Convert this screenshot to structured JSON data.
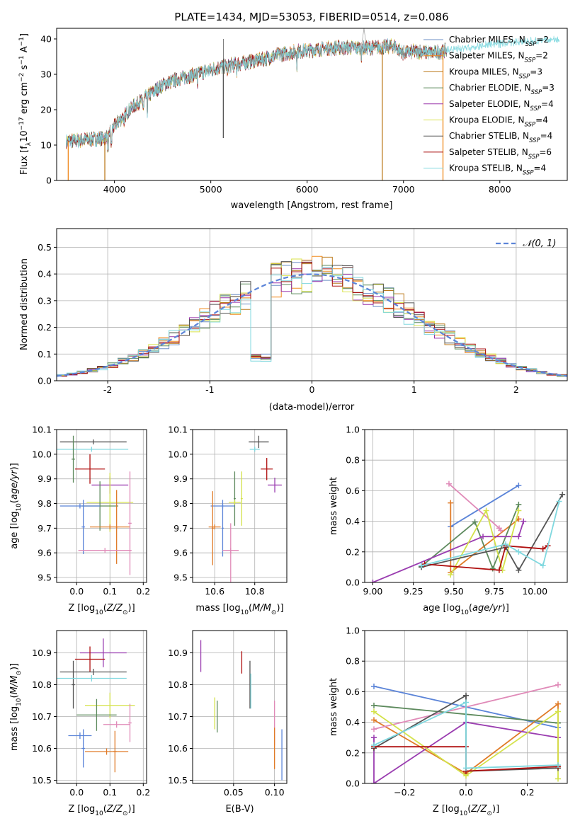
{
  "figure_title": "PLATE=1434, MJD=53053, FIBERID=0514, z=0.086",
  "colors": {
    "series": [
      "#6e8fc6",
      "#f08a1e",
      "#bc7b1e",
      "#5b8a5b",
      "#9933aa",
      "#d9e24a",
      "#555555",
      "#aa1111",
      "#80d8df"
    ],
    "pink": "#e08ab8",
    "blue": "#5b84d8",
    "orange": "#e07b28",
    "green": "#5d8a5d",
    "purple": "#9a3db0",
    "yellow": "#d4e24a",
    "dark": "#555555",
    "red": "#b01010",
    "cyan": "#80d8df",
    "grid": "#b0b0b0"
  },
  "chart_data": [
    {
      "id": "spectrum",
      "type": "line",
      "xlabel": "wavelength [Angstrom, rest frame]",
      "ylabel": "Flux [f_λ10^-17 erg cm^-2 s^-1 A^-1]",
      "xlim": [
        3400,
        8700
      ],
      "ylim": [
        0,
        43
      ],
      "xticks": [
        4000,
        5000,
        6000,
        7000,
        8000
      ],
      "yticks": [
        0,
        10,
        20,
        30,
        40
      ],
      "grid": false,
      "legend_position": "top-right",
      "continuum_x": [
        3500,
        3700,
        3900,
        4050,
        4200,
        4350,
        4500,
        4700,
        4900,
        5100,
        5300,
        5500,
        5700,
        5900,
        6100,
        6300,
        6500,
        6700,
        6900,
        7000,
        7150,
        7300,
        7500,
        7800,
        8100,
        8400,
        8700
      ],
      "continuum_y": [
        11,
        11.5,
        12,
        17,
        21,
        24,
        27,
        29,
        30.5,
        32,
        33,
        34,
        35.5,
        36.5,
        37,
        37.5,
        37.5,
        37.5,
        38,
        36,
        36.5,
        36,
        37,
        38,
        39,
        39.5,
        40
      ],
      "data_end": 7450,
      "series": [
        {
          "name": "Chabrier MILES, N_SSP=2",
          "label_main": "Chabrier MILES, N",
          "label_sub": "SSP",
          "label_tail": "=2"
        },
        {
          "name": "Salpeter MILES, N_SSP=2",
          "label_main": "Salpeter MILES, N",
          "label_sub": "SSP",
          "label_tail": "=2"
        },
        {
          "name": "Kroupa MILES, N_SSP=3",
          "label_main": "Kroupa MILES, N",
          "label_sub": "SSP",
          "label_tail": "=3"
        },
        {
          "name": "Chabrier ELODIE, N_SSP=3",
          "label_main": "Chabrier ELODIE, N",
          "label_sub": "SSP",
          "label_tail": "=3"
        },
        {
          "name": "Salpeter ELODIE, N_SSP=4",
          "label_main": "Salpeter ELODIE, N",
          "label_sub": "SSP",
          "label_tail": "=4"
        },
        {
          "name": "Kroupa ELODIE, N_SSP=4",
          "label_main": "Kroupa ELODIE, N",
          "label_sub": "SSP",
          "label_tail": "=4"
        },
        {
          "name": "Chabrier STELIB, N_SSP=4",
          "label_main": "Chabrier STELIB, N",
          "label_sub": "SSP",
          "label_tail": "=4"
        },
        {
          "name": "Salpeter STELIB, N_SSP=6",
          "label_main": "Salpeter STELIB, N",
          "label_sub": "SSP",
          "label_tail": "=6"
        },
        {
          "name": "Kroupa STELIB, N_SSP=4",
          "label_main": "Kroupa STELIB, N",
          "label_sub": "SSP",
          "label_tail": "=4"
        }
      ],
      "drops": [
        {
          "x": 3520,
          "color_index": 1
        },
        {
          "x": 3900,
          "color_index": 2
        },
        {
          "x": 6780,
          "color_index": 2
        },
        {
          "x": 7410,
          "color_index": 1
        },
        {
          "x": 5130,
          "color_index": 6
        }
      ]
    },
    {
      "id": "residual_hist",
      "type": "histogram",
      "xlabel": "(data-model)/error",
      "ylabel": "Normed distribution",
      "xlim": [
        -2.5,
        2.5
      ],
      "ylim": [
        0,
        0.57
      ],
      "xticks": [
        -2,
        -1,
        0,
        1,
        2
      ],
      "yticks": [
        0.0,
        0.1,
        0.2,
        0.3,
        0.4,
        0.5
      ],
      "grid": true,
      "legend_position": "top-right",
      "legend_label": "𝒩(0, 1)",
      "bin_width": 0.1,
      "curve_name": "N(0,1)"
    },
    {
      "id": "age_vs_Z",
      "type": "errorbar",
      "xlabel": "Z [log10(Z/Z⊙)]",
      "ylabel": "age [log10(age/yr)]",
      "xlim": [
        -0.06,
        0.21
      ],
      "ylim": [
        9.48,
        10.1
      ],
      "xticks": [
        0.0,
        0.1,
        0.2
      ],
      "yticks": [
        9.5,
        9.6,
        9.7,
        9.8,
        9.9,
        10.0,
        10.1
      ],
      "grid": true,
      "points": [
        {
          "x": 0.04,
          "y": 9.94,
          "xerr": 0.045,
          "yerr": 0.06,
          "c": "red"
        },
        {
          "x": 0.1,
          "y": 9.875,
          "xerr": 0.055,
          "yerr": 0.035,
          "c": "purple"
        },
        {
          "x": 0.05,
          "y": 10.05,
          "xerr": 0.1,
          "yerr": 0.01,
          "c": "dark"
        },
        {
          "x": 0.045,
          "y": 10.02,
          "xerr": 0.11,
          "yerr": 0.01,
          "c": "cyan"
        },
        {
          "x": -0.01,
          "y": 9.98,
          "xerr": 0.005,
          "yerr": 0.095,
          "c": "green"
        },
        {
          "x": 0.1,
          "y": 9.805,
          "xerr": 0.07,
          "yerr": 0.12,
          "c": "yellow"
        },
        {
          "x": 0.07,
          "y": 9.79,
          "xerr": 0.055,
          "yerr": 0.1,
          "c": "green"
        },
        {
          "x": 0.01,
          "y": 9.79,
          "xerr": 0.06,
          "yerr": 0.01,
          "c": "blue"
        },
        {
          "x": 0.02,
          "y": 9.705,
          "xerr": 0.005,
          "yerr": 0.11,
          "c": "blue"
        },
        {
          "x": 0.1,
          "y": 9.705,
          "xerr": 0.06,
          "yerr": 0.01,
          "c": "orange"
        },
        {
          "x": 0.12,
          "y": 9.705,
          "xerr": 0.005,
          "yerr": 0.15,
          "c": "orange"
        },
        {
          "x": 0.085,
          "y": 9.61,
          "xerr": 0.08,
          "yerr": 0.01,
          "c": "pink"
        },
        {
          "x": 0.16,
          "y": 9.72,
          "xerr": 0.005,
          "yerr": 0.21,
          "c": "pink"
        }
      ]
    },
    {
      "id": "age_vs_mass",
      "type": "errorbar",
      "xlabel": "mass [log10(M/M⊙)]",
      "ylabel": "",
      "xlim": [
        10.49,
        10.96
      ],
      "ylim": [
        9.48,
        10.1
      ],
      "xticks": [
        10.6,
        10.8
      ],
      "yticks": [
        9.5,
        9.6,
        9.7,
        9.8,
        9.9,
        10.0,
        10.1
      ],
      "grid": true,
      "points": [
        {
          "x": 10.82,
          "y": 10.05,
          "xerr": 0.05,
          "yerr": 0.025,
          "c": "dark"
        },
        {
          "x": 10.8,
          "y": 10.02,
          "xerr": 0.025,
          "yerr": 0.01,
          "c": "cyan"
        },
        {
          "x": 10.86,
          "y": 9.94,
          "xerr": 0.03,
          "yerr": 0.045,
          "c": "red"
        },
        {
          "x": 10.9,
          "y": 9.875,
          "xerr": 0.035,
          "yerr": 0.03,
          "c": "purple"
        },
        {
          "x": 10.735,
          "y": 9.82,
          "xerr": 0.005,
          "yerr": 0.11,
          "c": "yellow"
        },
        {
          "x": 10.7,
          "y": 9.82,
          "xerr": 0.005,
          "yerr": 0.11,
          "c": "green"
        },
        {
          "x": 10.7,
          "y": 9.805,
          "xerr": 0.03,
          "yerr": 0.01,
          "c": "yellow"
        },
        {
          "x": 10.64,
          "y": 9.79,
          "xerr": 0.06,
          "yerr": 0.01,
          "c": "blue"
        },
        {
          "x": 10.64,
          "y": 9.7,
          "xerr": 0.005,
          "yerr": 0.115,
          "c": "blue"
        },
        {
          "x": 10.6,
          "y": 9.705,
          "xerr": 0.03,
          "yerr": 0.01,
          "c": "orange"
        },
        {
          "x": 10.59,
          "y": 9.7,
          "xerr": 0.005,
          "yerr": 0.15,
          "c": "orange"
        },
        {
          "x": 10.68,
          "y": 9.61,
          "xerr": 0.04,
          "yerr": 0.01,
          "c": "pink"
        },
        {
          "x": 10.68,
          "y": 9.6,
          "xerr": 0.005,
          "yerr": 0.12,
          "c": "pink"
        }
      ]
    },
    {
      "id": "weight_vs_age",
      "type": "line",
      "xlabel": "age [log10(age/yr)]",
      "ylabel": "mass weight",
      "xlim": [
        8.95,
        10.2
      ],
      "ylim": [
        0,
        1
      ],
      "xticks": [
        9.0,
        9.25,
        9.5,
        9.75,
        10.0
      ],
      "xtick_labels": [
        "9.00",
        "9.25",
        "9.50",
        "9.75",
        "10.00"
      ],
      "yticks": [
        0.0,
        0.2,
        0.4,
        0.6,
        0.8,
        1.0
      ],
      "grid": true,
      "series": [
        {
          "c": "blue",
          "x": [
            9.48,
            9.9
          ],
          "y": [
            0.365,
            0.635
          ]
        },
        {
          "c": "orange",
          "x": [
            9.48,
            9.48,
            9.9,
            9.9
          ],
          "y": [
            0.52,
            0.065,
            0.415,
            0.415
          ]
        },
        {
          "c": "pink",
          "x": [
            9.47,
            9.78,
            9.79
          ],
          "y": [
            0.645,
            0.355,
            0.34
          ]
        },
        {
          "c": "green",
          "x": [
            9.3,
            9.63,
            9.74,
            9.9
          ],
          "y": [
            0.105,
            0.395,
            0.09,
            0.51
          ]
        },
        {
          "c": "purple",
          "x": [
            9.0,
            9.68,
            9.9,
            9.93
          ],
          "y": [
            0.0,
            0.3,
            0.3,
            0.4
          ]
        },
        {
          "c": "yellow",
          "x": [
            9.48,
            9.7,
            9.8,
            9.9
          ],
          "y": [
            0.05,
            0.47,
            0.08,
            0.47
          ]
        },
        {
          "c": "dark",
          "x": [
            9.3,
            9.82,
            9.9,
            10.17
          ],
          "y": [
            0.1,
            0.23,
            0.08,
            0.575
          ]
        },
        {
          "c": "red",
          "x": [
            9.32,
            9.78,
            9.82,
            10.05,
            10.08
          ],
          "y": [
            0.12,
            0.08,
            0.24,
            0.22,
            0.24
          ]
        },
        {
          "c": "cyan",
          "x": [
            9.3,
            9.82,
            9.9,
            10.05,
            10.15
          ],
          "y": [
            0.11,
            0.25,
            0.2,
            0.11,
            0.53
          ]
        }
      ]
    },
    {
      "id": "mass_vs_Z",
      "type": "errorbar",
      "xlabel": "Z [log10(Z/Z⊙)]",
      "ylabel": "mass [log10(M/M⊙)]",
      "xlim": [
        -0.06,
        0.21
      ],
      "ylim": [
        10.49,
        10.97
      ],
      "xticks": [
        0.0,
        0.1,
        0.2
      ],
      "yticks": [
        10.5,
        10.6,
        10.7,
        10.8,
        10.9
      ],
      "grid": true,
      "points": [
        {
          "x": 0.08,
          "y": 10.9,
          "xerr": 0.07,
          "yerr": 0.045,
          "c": "purple"
        },
        {
          "x": 0.04,
          "y": 10.88,
          "xerr": 0.045,
          "yerr": 0.04,
          "c": "red"
        },
        {
          "x": 0.05,
          "y": 10.84,
          "xerr": 0.1,
          "yerr": 0.01,
          "c": "dark"
        },
        {
          "x": -0.01,
          "y": 10.8,
          "xerr": 0.005,
          "yerr": 0.075,
          "c": "dark"
        },
        {
          "x": 0.045,
          "y": 10.82,
          "xerr": 0.105,
          "yerr": 0.01,
          "c": "cyan"
        },
        {
          "x": 0.1,
          "y": 10.735,
          "xerr": 0.075,
          "yerr": 0.04,
          "c": "yellow"
        },
        {
          "x": 0.06,
          "y": 10.705,
          "xerr": 0.06,
          "yerr": 0.05,
          "c": "green"
        },
        {
          "x": 0.12,
          "y": 10.675,
          "xerr": 0.04,
          "yerr": 0.01,
          "c": "pink"
        },
        {
          "x": 0.16,
          "y": 10.68,
          "xerr": 0.005,
          "yerr": 0.06,
          "c": "pink"
        },
        {
          "x": 0.01,
          "y": 10.64,
          "xerr": 0.035,
          "yerr": 0.01,
          "c": "blue"
        },
        {
          "x": 0.02,
          "y": 10.6,
          "xerr": 0.005,
          "yerr": 0.06,
          "c": "blue"
        },
        {
          "x": 0.09,
          "y": 10.59,
          "xerr": 0.065,
          "yerr": 0.01,
          "c": "orange"
        },
        {
          "x": 0.115,
          "y": 10.59,
          "xerr": 0.005,
          "yerr": 0.065,
          "c": "orange"
        }
      ]
    },
    {
      "id": "mass_vs_ebv",
      "type": "errorbar",
      "xlabel": "E(B-V)",
      "ylabel": "",
      "xlim": [
        0.0,
        0.115
      ],
      "ylim": [
        10.49,
        10.97
      ],
      "xticks": [
        0.05,
        0.1
      ],
      "xtick_labels": [
        "0.05",
        "0.10"
      ],
      "yticks": [
        10.5,
        10.6,
        10.7,
        10.8,
        10.9
      ],
      "grid": true,
      "points": [
        {
          "x": 0.01,
          "y": 10.89,
          "xerr": 0.0,
          "yerr": 0.05,
          "c": "purple"
        },
        {
          "x": 0.06,
          "y": 10.87,
          "xerr": 0.0,
          "yerr": 0.035,
          "c": "red"
        },
        {
          "x": 0.07,
          "y": 10.8,
          "xerr": 0.0,
          "yerr": 0.075,
          "c": "dark"
        },
        {
          "x": 0.071,
          "y": 10.78,
          "xerr": 0.0,
          "yerr": 0.055,
          "c": "cyan"
        },
        {
          "x": 0.027,
          "y": 10.71,
          "xerr": 0.0,
          "yerr": 0.05,
          "c": "yellow"
        },
        {
          "x": 0.03,
          "y": 10.7,
          "xerr": 0.0,
          "yerr": 0.05,
          "c": "green"
        },
        {
          "x": 0.1,
          "y": 10.68,
          "xerr": 0.0,
          "yerr": 0.07,
          "c": "pink"
        },
        {
          "x": 0.1,
          "y": 10.6,
          "xerr": 0.0,
          "yerr": 0.065,
          "c": "orange"
        },
        {
          "x": 0.109,
          "y": 10.58,
          "xerr": 0.0,
          "yerr": 0.08,
          "c": "blue"
        }
      ]
    },
    {
      "id": "weight_vs_Z",
      "type": "line",
      "xlabel": "Z [log10(Z/Z⊙)]",
      "ylabel": "mass weight",
      "xlim": [
        -0.33,
        0.33
      ],
      "ylim": [
        0,
        1
      ],
      "xticks": [
        -0.2,
        0.0,
        0.2
      ],
      "xtick_labels": [
        "−0.2",
        "0.0",
        "0.2"
      ],
      "yticks": [
        0.0,
        0.2,
        0.4,
        0.6,
        0.8,
        1.0
      ],
      "grid": true,
      "series": [
        {
          "c": "blue",
          "x": [
            -0.3,
            0.3
          ],
          "y": [
            0.635,
            0.365
          ]
        },
        {
          "c": "orange",
          "x": [
            -0.3,
            0.0,
            0.3,
            0.3
          ],
          "y": [
            0.415,
            0.065,
            0.52,
            0.1
          ]
        },
        {
          "c": "pink",
          "x": [
            -0.3,
            0.3
          ],
          "y": [
            0.355,
            0.645
          ]
        },
        {
          "c": "green",
          "x": [
            -0.3,
            0.3
          ],
          "y": [
            0.51,
            0.395
          ]
        },
        {
          "c": "purple",
          "x": [
            -0.3,
            -0.3,
            0.0,
            0.3
          ],
          "y": [
            0.3,
            0.0,
            0.4,
            0.3
          ]
        },
        {
          "c": "yellow",
          "x": [
            -0.3,
            0.0,
            0.3,
            0.3
          ],
          "y": [
            0.47,
            0.05,
            0.47,
            0.03
          ]
        },
        {
          "c": "dark",
          "x": [
            -0.3,
            0.0,
            0.0,
            0.3
          ],
          "y": [
            0.23,
            0.575,
            0.08,
            0.1
          ]
        },
        {
          "c": "red",
          "x": [
            -0.3,
            0.0,
            0.0,
            0.3
          ],
          "y": [
            0.24,
            0.24,
            0.08,
            0.11
          ]
        },
        {
          "c": "cyan",
          "x": [
            -0.3,
            0.0,
            0.0,
            0.3
          ],
          "y": [
            0.25,
            0.53,
            0.1,
            0.12
          ]
        }
      ]
    }
  ]
}
